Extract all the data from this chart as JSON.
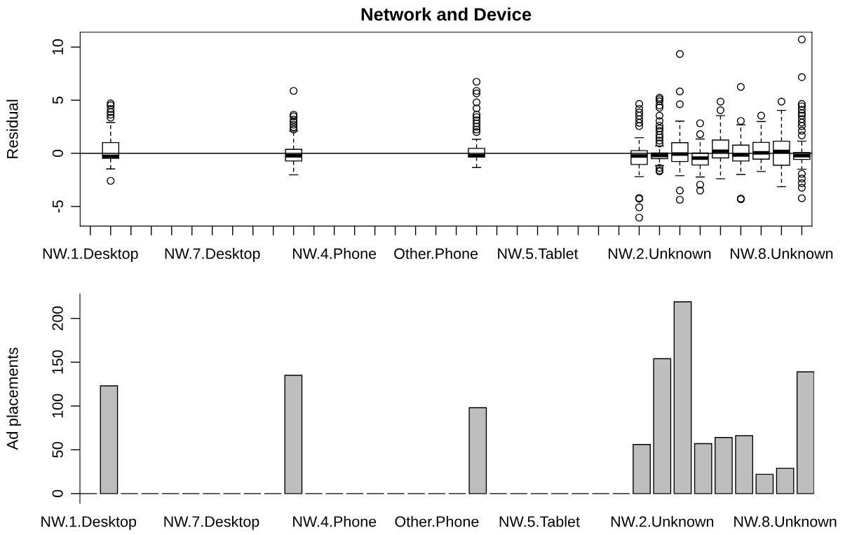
{
  "chart_data": [
    {
      "type": "box",
      "title": "Network and Device",
      "ylabel": "Residual",
      "categories": [
        "NW.1.Desktop",
        null,
        null,
        null,
        null,
        null,
        "NW.7.Desktop",
        null,
        null,
        null,
        null,
        null,
        "NW.4.Phone",
        null,
        null,
        null,
        null,
        "Other.Phone",
        null,
        null,
        null,
        null,
        "NW.5.Tablet",
        null,
        null,
        null,
        null,
        null,
        "NW.2.Unknown",
        null,
        null,
        null,
        null,
        null,
        "NW.8.Unknown",
        null
      ],
      "boxes": [
        null,
        {
          "low": -1.47,
          "q1": -0.47,
          "median": -0.28,
          "q3": 1.01,
          "high": 2.9,
          "outliers": [
            -2.59,
            3.36,
            3.64,
            3.88,
            4.18,
            4.52,
            4.7
          ]
        },
        null,
        null,
        null,
        null,
        null,
        null,
        null,
        null,
        {
          "low": -2.02,
          "q1": -0.72,
          "median": -0.23,
          "q3": 0.38,
          "high": 2.1,
          "outliers": [
            2.24,
            2.47,
            2.7,
            2.94,
            3.17,
            3.48,
            3.64,
            5.88
          ]
        },
        null,
        null,
        null,
        null,
        null,
        null,
        null,
        null,
        {
          "low": -1.34,
          "q1": -0.35,
          "median": -0.22,
          "q3": 0.47,
          "high": 1.32,
          "outliers": [
            2.0,
            2.24,
            2.51,
            2.82,
            3.11,
            3.41,
            3.64,
            4.23,
            4.8,
            5.64,
            5.88,
            6.74
          ]
        },
        null,
        null,
        null,
        null,
        null,
        null,
        null,
        {
          "low": -2.2,
          "q1": -1.05,
          "median": -0.25,
          "q3": 0.25,
          "high": 1.47,
          "outliers": [
            -6.05,
            -5.08,
            -4.28,
            -4.2,
            2.57,
            2.87,
            3.2,
            3.54,
            3.85,
            4.2,
            4.65
          ]
        },
        {
          "low": -1.16,
          "q1": -0.5,
          "median": -0.2,
          "q3": 0.03,
          "high": 0.7,
          "outliers": [
            -1.7,
            -1.6,
            -1.38,
            0.93,
            1.2,
            1.5,
            1.75,
            2.1,
            2.35,
            2.6,
            3.05,
            3.55,
            4.3,
            4.5,
            4.9,
            5.1,
            5.25
          ]
        },
        {
          "low": -2.1,
          "q1": -0.77,
          "median": -0.07,
          "q3": 1.0,
          "high": 3.03,
          "outliers": [
            -4.37,
            -3.5,
            4.62,
            5.82,
            9.35
          ]
        },
        {
          "low": -2.23,
          "q1": -1.1,
          "median": -0.45,
          "q3": 0.03,
          "high": 1.35,
          "outliers": [
            -3.5,
            -2.95,
            1.8,
            2.83
          ]
        },
        {
          "low": -2.4,
          "q1": -0.43,
          "median": 0.2,
          "q3": 1.25,
          "high": 3.55,
          "outliers": [
            4.06,
            4.87
          ]
        },
        {
          "low": -2.0,
          "q1": -0.72,
          "median": -0.15,
          "q3": 0.77,
          "high": 2.68,
          "outliers": [
            -4.32,
            -4.25,
            3.05,
            6.25
          ]
        },
        {
          "low": -1.71,
          "q1": -0.55,
          "median": 0.05,
          "q3": 1.03,
          "high": 3.0,
          "outliers": [
            3.55
          ]
        },
        {
          "low": -3.14,
          "q1": -1.12,
          "median": 0.18,
          "q3": 1.14,
          "high": 4.04,
          "outliers": [
            4.87
          ]
        },
        {
          "low": -1.49,
          "q1": -0.57,
          "median": -0.22,
          "q3": 0.09,
          "high": 1.14,
          "outliers": [
            -4.23,
            -3.24,
            -2.81,
            -2.37,
            -1.93,
            1.69,
            2.13,
            2.57,
            2.89,
            3.22,
            3.55,
            3.77,
            4.1,
            4.43,
            4.65,
            7.17,
            10.72
          ]
        }
      ],
      "ylim": [
        -6.85,
        11.4
      ],
      "yticks": [
        -5,
        0,
        5,
        10
      ],
      "ref_lines": [
        {
          "axis": "y",
          "value": 0,
          "color": "#000000"
        }
      ]
    },
    {
      "type": "bar",
      "ylabel": "Ad placements",
      "categories": [
        "NW.1.Desktop",
        null,
        null,
        null,
        null,
        null,
        "NW.7.Desktop",
        null,
        null,
        null,
        null,
        null,
        "NW.4.Phone",
        null,
        null,
        null,
        null,
        "Other.Phone",
        null,
        null,
        null,
        null,
        "NW.5.Tablet",
        null,
        null,
        null,
        null,
        null,
        "NW.2.Unknown",
        null,
        null,
        null,
        null,
        null,
        "NW.8.Unknown",
        null
      ],
      "values": [
        0,
        123,
        0,
        0,
        0,
        0,
        0,
        0,
        0,
        0,
        135,
        0,
        0,
        0,
        0,
        0,
        0,
        0,
        0,
        98,
        0,
        0,
        0,
        0,
        0,
        0,
        0,
        56,
        154,
        219,
        57,
        64,
        66,
        22,
        29,
        139
      ],
      "color": "#bebebe",
      "ylim": [
        -11,
        228
      ],
      "yticks": [
        0,
        50,
        100,
        150,
        200
      ]
    }
  ]
}
